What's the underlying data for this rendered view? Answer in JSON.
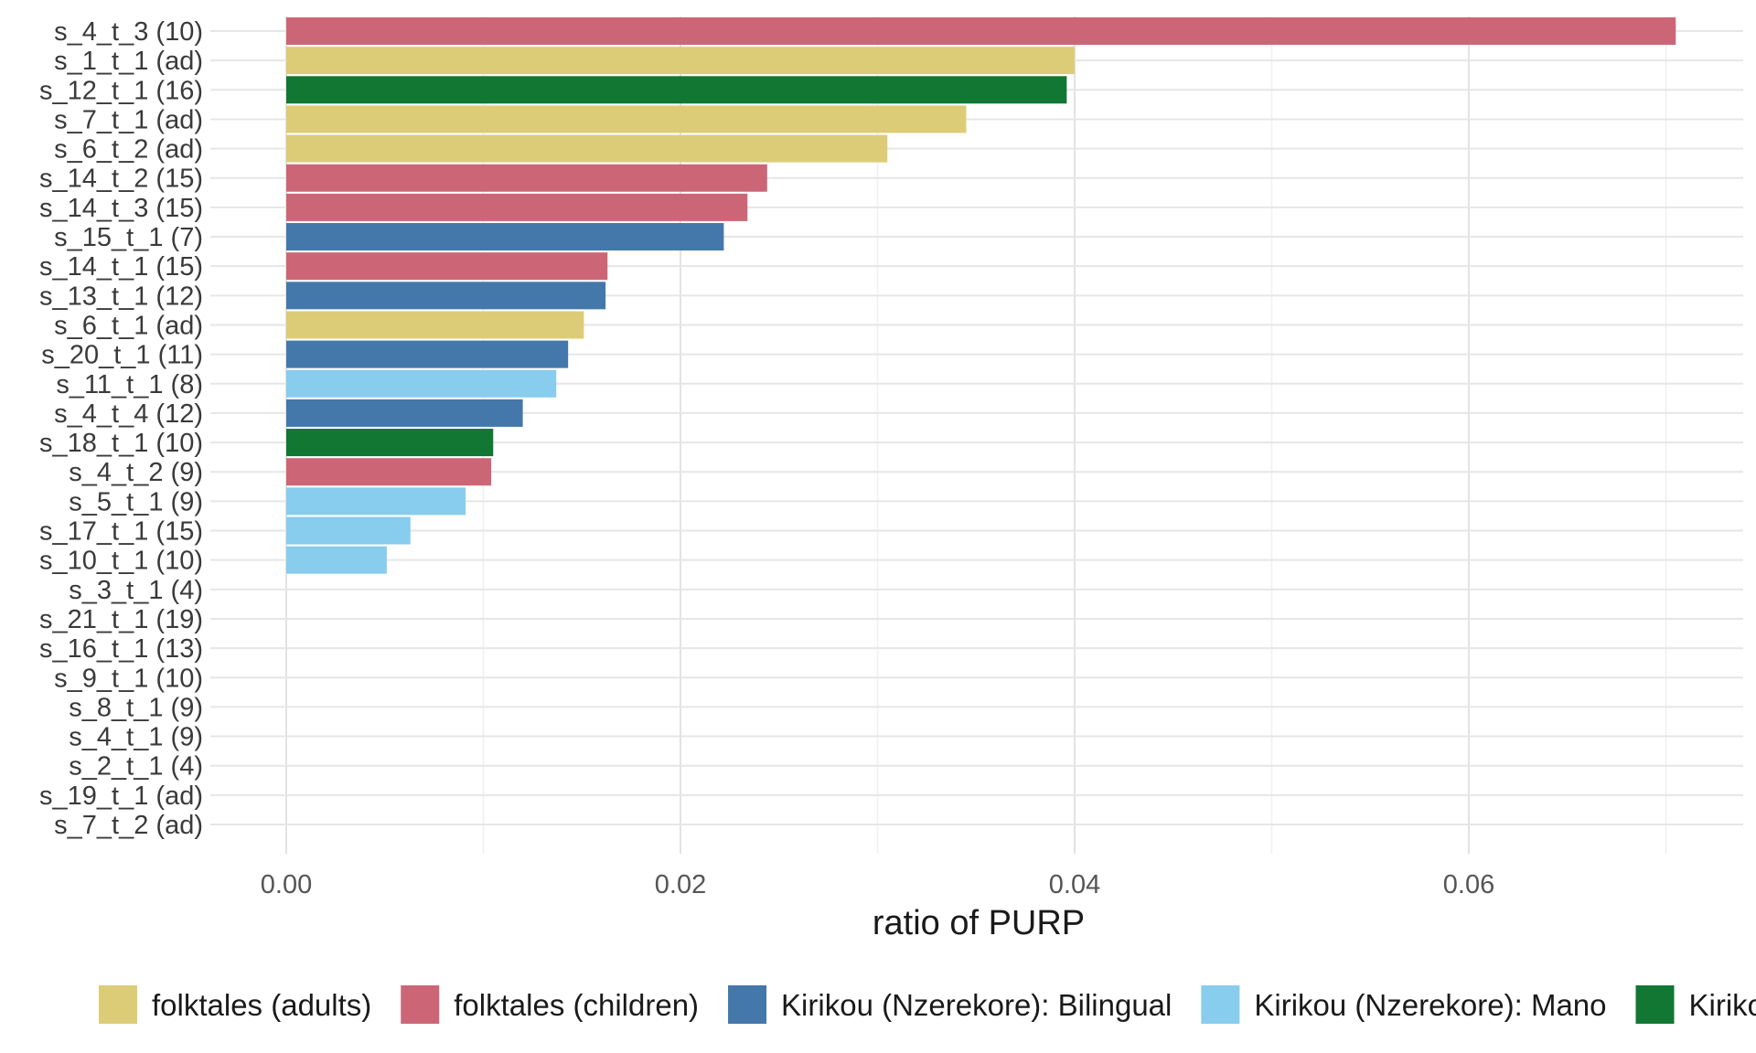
{
  "chart_data": {
    "type": "bar",
    "orientation": "horizontal",
    "xlabel": "ratio of PURP",
    "ylabel": "",
    "xlim": [
      -0.0105,
      0.0745
    ],
    "xticks": [
      0.0,
      0.02,
      0.04,
      0.06
    ],
    "xtick_labels": [
      "0.00",
      "0.02",
      "0.04",
      "0.06"
    ],
    "grid": true,
    "legend_position": "bottom",
    "groups": [
      {
        "name": "folktales (adults)",
        "color": "#DDCC77"
      },
      {
        "name": "folktales (children)",
        "color": "#CC6677"
      },
      {
        "name": "Kirikou (Nzerekore): Bilingual",
        "color": "#4477AA"
      },
      {
        "name": "Kirikou (Nzerekore): Mano",
        "color": "#88CCEE"
      },
      {
        "name": "Kirikou",
        "color": "#117733"
      }
    ],
    "bars": [
      {
        "label": "s_4_t_3 (10)",
        "value": 0.0705,
        "group": 1
      },
      {
        "label": "s_1_t_1 (ad)",
        "value": 0.04,
        "group": 0
      },
      {
        "label": "s_12_t_1 (16)",
        "value": 0.0396,
        "group": 4
      },
      {
        "label": "s_7_t_1 (ad)",
        "value": 0.0345,
        "group": 0
      },
      {
        "label": "s_6_t_2 (ad)",
        "value": 0.0305,
        "group": 0
      },
      {
        "label": "s_14_t_2 (15)",
        "value": 0.0244,
        "group": 1
      },
      {
        "label": "s_14_t_3 (15)",
        "value": 0.0234,
        "group": 1
      },
      {
        "label": "s_15_t_1 (7)",
        "value": 0.0222,
        "group": 2
      },
      {
        "label": "s_14_t_1 (15)",
        "value": 0.0163,
        "group": 1
      },
      {
        "label": "s_13_t_1 (12)",
        "value": 0.0162,
        "group": 2
      },
      {
        "label": "s_6_t_1 (ad)",
        "value": 0.0151,
        "group": 0
      },
      {
        "label": "s_20_t_1 (11)",
        "value": 0.0143,
        "group": 2
      },
      {
        "label": "s_11_t_1 (8)",
        "value": 0.0137,
        "group": 3
      },
      {
        "label": "s_4_t_4 (12)",
        "value": 0.012,
        "group": 2
      },
      {
        "label": "s_18_t_1 (10)",
        "value": 0.0105,
        "group": 4
      },
      {
        "label": "s_4_t_2 (9)",
        "value": 0.0104,
        "group": 1
      },
      {
        "label": "s_5_t_1 (9)",
        "value": 0.0091,
        "group": 3
      },
      {
        "label": "s_17_t_1 (15)",
        "value": 0.0063,
        "group": 3
      },
      {
        "label": "s_10_t_1 (10)",
        "value": 0.0051,
        "group": 3
      },
      {
        "label": "s_3_t_1 (4)",
        "value": 0,
        "group": null
      },
      {
        "label": "s_21_t_1 (19)",
        "value": 0,
        "group": null
      },
      {
        "label": "s_16_t_1 (13)",
        "value": 0,
        "group": null
      },
      {
        "label": "s_9_t_1 (10)",
        "value": 0,
        "group": null
      },
      {
        "label": "s_8_t_1 (9)",
        "value": 0,
        "group": null
      },
      {
        "label": "s_4_t_1 (9)",
        "value": 0,
        "group": null
      },
      {
        "label": "s_2_t_1 (4)",
        "value": 0,
        "group": null
      },
      {
        "label": "s_19_t_1 (ad)",
        "value": 0,
        "group": null
      },
      {
        "label": "s_7_t_2 (ad)",
        "value": 0,
        "group": null
      }
    ]
  }
}
